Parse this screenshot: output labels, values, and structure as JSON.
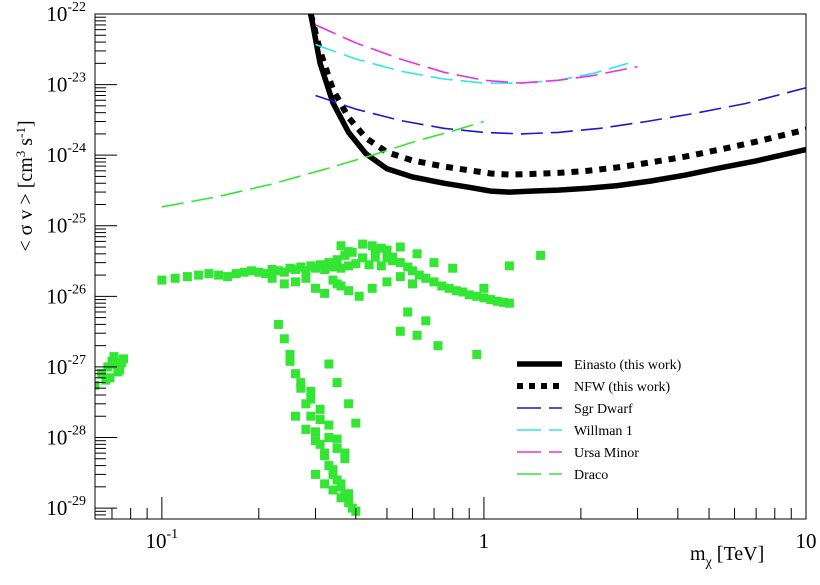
{
  "chart_data": {
    "type": "scatter",
    "title": "",
    "xlabel": {
      "base": "m",
      "sub": "χ",
      "unit": " [TeV]"
    },
    "ylabel": {
      "open": "< σ v > [cm",
      "sup1": "3",
      "mid": " s",
      "sup2": "-1",
      "close": "]"
    },
    "x_scale": "log",
    "y_scale": "log",
    "xlim": [
      0.062,
      10
    ],
    "ylim": [
      7e-30,
      1e-22
    ],
    "grid": false,
    "legend_position": "bottom-right",
    "x_ticks": [
      {
        "value": 0.1,
        "base": "10",
        "exp": "-1"
      },
      {
        "value": 1,
        "base": "1",
        "exp": ""
      },
      {
        "value": 10,
        "base": "10",
        "exp": ""
      }
    ],
    "y_ticks": [
      {
        "value": 1e-22,
        "base": "10",
        "exp": "-22"
      },
      {
        "value": 1e-23,
        "base": "10",
        "exp": "-23"
      },
      {
        "value": 1e-24,
        "base": "10",
        "exp": "-24"
      },
      {
        "value": 1e-25,
        "base": "10",
        "exp": "-25"
      },
      {
        "value": 1e-26,
        "base": "10",
        "exp": "-26"
      },
      {
        "value": 1e-27,
        "base": "10",
        "exp": "-27"
      },
      {
        "value": 1e-28,
        "base": "10",
        "exp": "-28"
      },
      {
        "value": 1e-29,
        "base": "10",
        "exp": "-29"
      }
    ],
    "series": [
      {
        "name": "Einasto (this work)",
        "kind": "line",
        "style": "solid",
        "color": "#000000",
        "x": [
          0.29,
          0.31,
          0.34,
          0.38,
          0.43,
          0.5,
          0.6,
          0.75,
          0.9,
          1.05,
          1.2,
          1.4,
          1.7,
          2.1,
          2.6,
          3.3,
          4.2,
          5.4,
          7.0,
          10.0
        ],
        "y": [
          1e-22,
          2e-23,
          5.5e-24,
          2.1e-24,
          1.05e-24,
          6.4e-25,
          4.9e-25,
          4e-25,
          3.5e-25,
          3.1e-25,
          3e-25,
          3.1e-25,
          3.2e-25,
          3.4e-25,
          3.7e-25,
          4.3e-25,
          5.2e-25,
          6.6e-25,
          8.3e-25,
          1.2e-24
        ]
      },
      {
        "name": "NFW (this work)",
        "kind": "line",
        "style": "dotted",
        "color": "#000000",
        "x": [
          0.29,
          0.31,
          0.34,
          0.38,
          0.43,
          0.5,
          0.6,
          0.75,
          0.9,
          1.05,
          1.2,
          1.4,
          1.7,
          2.1,
          2.6,
          3.3,
          4.2,
          5.4,
          7.0,
          10.0
        ],
        "y": [
          1e-22,
          3e-23,
          8.5e-24,
          3.4e-24,
          1.75e-24,
          1.1e-24,
          8.4e-25,
          6.9e-25,
          6.1e-25,
          5.5e-25,
          5.3e-25,
          5.4e-25,
          5.6e-25,
          6e-25,
          6.7e-25,
          7.9e-25,
          9.5e-25,
          1.2e-24,
          1.55e-24,
          2.3e-24
        ]
      },
      {
        "name": "Sgr Dwarf",
        "kind": "line",
        "style": "dashed",
        "color": "#1a1acc",
        "x": [
          0.3,
          0.4,
          0.55,
          0.75,
          1.0,
          1.3,
          1.7,
          2.3,
          3.2,
          4.5,
          6.5,
          10.0
        ],
        "y": [
          7e-24,
          4.5e-24,
          3.1e-24,
          2.4e-24,
          2.1e-24,
          2e-24,
          2.1e-24,
          2.4e-24,
          3e-24,
          3.9e-24,
          5.4e-24,
          9e-24
        ]
      },
      {
        "name": "Willman 1",
        "kind": "line",
        "style": "dashed",
        "color": "#33e6e6",
        "x": [
          0.3,
          0.4,
          0.55,
          0.75,
          1.0,
          1.3,
          1.7,
          2.2,
          2.8
        ],
        "y": [
          3.7e-23,
          2.3e-23,
          1.55e-23,
          1.2e-23,
          1.05e-23,
          1.05e-23,
          1.15e-23,
          1.45e-23,
          2e-23
        ]
      },
      {
        "name": "Ursa Minor",
        "kind": "line",
        "style": "dashed",
        "color": "#e633e6",
        "x": [
          0.3,
          0.4,
          0.55,
          0.75,
          1.0,
          1.3,
          1.7,
          2.2,
          3.0
        ],
        "y": [
          7e-23,
          3.9e-23,
          2.3e-23,
          1.5e-23,
          1.15e-23,
          1.05e-23,
          1.15e-23,
          1.35e-23,
          1.8e-23
        ]
      },
      {
        "name": "Draco",
        "kind": "line",
        "style": "dashed",
        "color": "#33e633",
        "x": [
          0.1,
          0.15,
          0.22,
          0.32,
          0.45,
          0.62,
          0.8,
          1.0
        ],
        "y": [
          1.85e-25,
          2.6e-25,
          3.9e-25,
          6.3e-25,
          1e-24,
          1.6e-24,
          2.2e-24,
          3e-24
        ]
      }
    ],
    "scatter": {
      "name": "",
      "color": "#33e633",
      "x": [
        0.062,
        0.065,
        0.068,
        0.07,
        0.072,
        0.074,
        0.076,
        0.069,
        0.071,
        0.073,
        0.067,
        0.075,
        0.1,
        0.11,
        0.12,
        0.13,
        0.14,
        0.15,
        0.16,
        0.17,
        0.18,
        0.19,
        0.2,
        0.21,
        0.22,
        0.23,
        0.24,
        0.25,
        0.26,
        0.27,
        0.28,
        0.29,
        0.3,
        0.31,
        0.32,
        0.33,
        0.34,
        0.35,
        0.36,
        0.37,
        0.38,
        0.39,
        0.4,
        0.42,
        0.44,
        0.46,
        0.48,
        0.5,
        0.52,
        0.55,
        0.58,
        0.6,
        0.63,
        0.66,
        0.7,
        0.74,
        0.78,
        0.82,
        0.86,
        0.9,
        0.95,
        1.0,
        1.05,
        1.1,
        1.15,
        1.2,
        0.35,
        0.38,
        0.41,
        0.45,
        0.5,
        0.55,
        0.6,
        0.3,
        0.32,
        0.34,
        0.36,
        0.28,
        0.26,
        0.24,
        0.22,
        0.23,
        0.24,
        0.25,
        0.26,
        0.27,
        0.28,
        0.29,
        0.3,
        0.31,
        0.32,
        0.33,
        0.34,
        0.35,
        0.36,
        0.37,
        0.38,
        0.39,
        0.4,
        0.25,
        0.27,
        0.29,
        0.31,
        0.33,
        0.35,
        0.37,
        0.26,
        0.28,
        0.3,
        0.32,
        0.34,
        0.36,
        0.38,
        0.29,
        0.31,
        0.33,
        0.35,
        0.37,
        0.3,
        0.32,
        0.34,
        0.36,
        0.4,
        0.38,
        0.35,
        0.33,
        0.42,
        0.46,
        0.5,
        0.55,
        0.62,
        0.7,
        0.8,
        0.55,
        0.62,
        0.72,
        0.58,
        0.66,
        0.95,
        1.5,
        1.2,
        1.0,
        0.45,
        0.48,
        0.52,
        0.38,
        0.36
      ],
      "y": [
        5.5e-28,
        8e-28,
        1e-27,
        1.2e-27,
        1.1e-27,
        9e-28,
        1.3e-27,
        7e-28,
        1.4e-27,
        8.5e-28,
        6.5e-28,
        1.15e-27,
        1.7e-26,
        1.8e-26,
        1.9e-26,
        2e-26,
        2.1e-26,
        2e-26,
        1.9e-26,
        2.1e-26,
        2.2e-26,
        2.3e-26,
        2.2e-26,
        2.1e-26,
        2.4e-26,
        2.3e-26,
        2.2e-26,
        2.5e-26,
        2.4e-26,
        2.6e-26,
        2.3e-26,
        2.7e-26,
        2.5e-26,
        2.8e-26,
        2.4e-26,
        3e-26,
        2.6e-26,
        3.3e-26,
        2.5e-26,
        3.8e-26,
        2.7e-26,
        4.2e-26,
        2.9e-26,
        3.5e-26,
        2.8e-26,
        3.6e-26,
        2.7e-26,
        4.5e-26,
        3.2e-26,
        3e-26,
        2.6e-26,
        2.3e-26,
        2e-26,
        1.8e-26,
        1.6e-26,
        1.4e-26,
        1.3e-26,
        1.2e-26,
        1.15e-26,
        1.05e-26,
        1e-26,
        9.5e-27,
        9e-27,
        8.5e-27,
        8.2e-27,
        8e-27,
        1.5e-26,
        1.2e-26,
        1e-26,
        1.3e-26,
        1.6e-26,
        1.9e-26,
        1.5e-26,
        1.3e-26,
        1.1e-26,
        1.7e-26,
        1.4e-26,
        1.8e-26,
        1.6e-26,
        1.5e-26,
        1.8e-26,
        4e-27,
        2.5e-27,
        1.5e-27,
        8e-28,
        5e-28,
        3e-28,
        2e-28,
        1.2e-28,
        8e-29,
        6e-29,
        4e-29,
        3e-29,
        2.5e-29,
        2e-29,
        1.5e-29,
        1.2e-29,
        1e-29,
        9e-30,
        1.2e-27,
        6e-28,
        3.5e-28,
        1.8e-28,
        1e-28,
        7e-29,
        5e-29,
        2e-28,
        1.3e-28,
        9e-29,
        5.5e-29,
        3.5e-29,
        2.2e-29,
        1.6e-29,
        4.5e-28,
        2.5e-28,
        1.5e-28,
        9.5e-29,
        6e-29,
        3e-29,
        2.2e-29,
        1.8e-29,
        1.4e-29,
        1.6e-28,
        3e-28,
        6e-28,
        1.1e-27,
        5.5e-26,
        4.5e-26,
        3.5e-26,
        5e-26,
        4e-26,
        3e-26,
        2.5e-26,
        3.2e-27,
        2.8e-27,
        2e-27,
        6e-27,
        4.5e-27,
        1.5e-27,
        3.8e-26,
        2.7e-26,
        1.3e-26,
        5.2e-26,
        4.8e-26,
        3.6e-26,
        4.3e-26,
        5.2e-26
      ]
    },
    "legend": [
      {
        "label": "Einasto (this work)",
        "style": "solid",
        "color": "#000000"
      },
      {
        "label": "NFW (this work)",
        "style": "dotted",
        "color": "#000000"
      },
      {
        "label": "Sgr Dwarf",
        "style": "dashed",
        "color": "#1a1acc"
      },
      {
        "label": "Willman 1",
        "style": "dashed",
        "color": "#33e6e6"
      },
      {
        "label": "Ursa Minor",
        "style": "dashed",
        "color": "#e633e6"
      },
      {
        "label": "Draco",
        "style": "dashed",
        "color": "#33e633"
      }
    ]
  }
}
